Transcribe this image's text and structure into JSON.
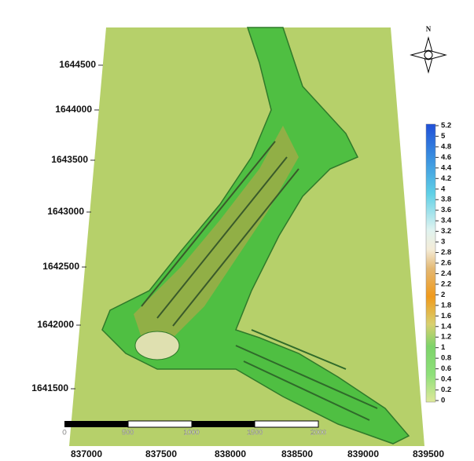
{
  "north_label": "N",
  "y_labels": [
    "1644500",
    "1644000",
    "1643500",
    "1643000",
    "1642500",
    "1642000",
    "1641500"
  ],
  "x_labels": [
    "837000",
    "837500",
    "838000",
    "838500",
    "839000",
    "839500"
  ],
  "colorbar_labels": [
    "5.2",
    "5",
    "4.8",
    "4.6",
    "4.4",
    "4.2",
    "4",
    "3.8",
    "3.6",
    "3.4",
    "3.2",
    "3",
    "2.8",
    "2.6",
    "2.4",
    "2.2",
    "2",
    "1.8",
    "1.6",
    "1.4",
    "1.2",
    "1",
    "0.8",
    "0.6",
    "0.4",
    "0.2",
    "0"
  ],
  "scale_bar_labels": [
    "0",
    "500",
    "1000",
    "1500",
    "2000"
  ]
}
